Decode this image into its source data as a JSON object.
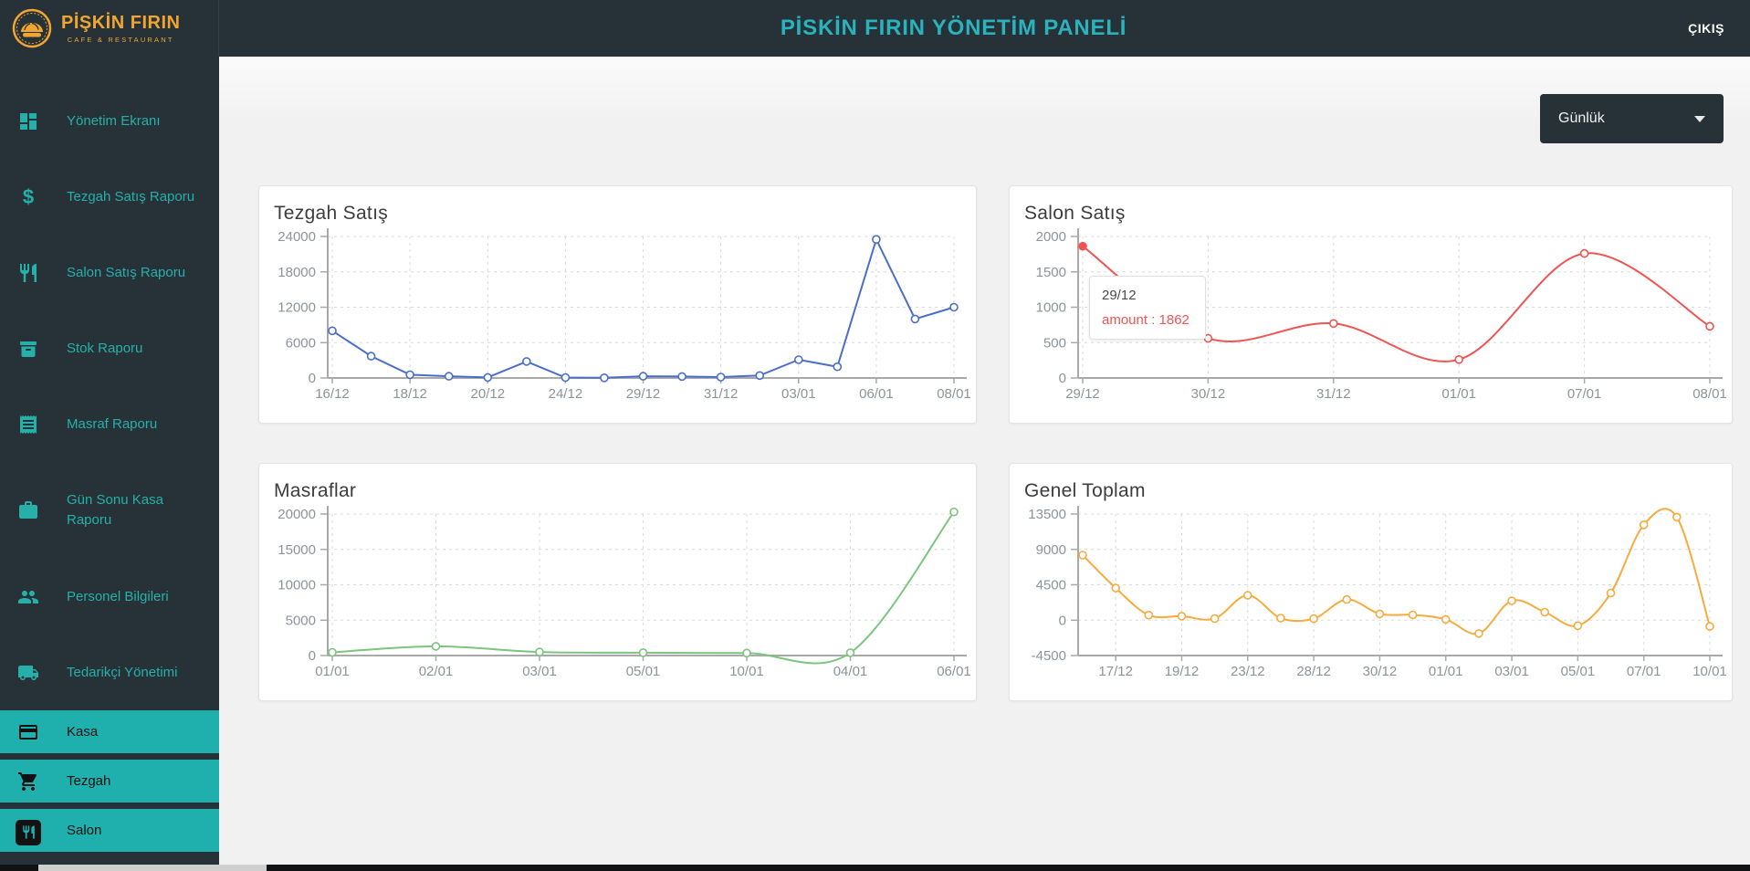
{
  "brand": {
    "name": "PİŞKİN FIRIN",
    "subtitle": "CAFE & RESTAURANT"
  },
  "header": {
    "title": "PİSKİN FIRIN YÖNETİM PANELİ",
    "logout_label": "ÇIKIŞ"
  },
  "sidebar": {
    "items": [
      {
        "label": "Yönetim Ekranı",
        "icon": "dashboard-icon"
      },
      {
        "label": "Tezgah Satış Raporu",
        "icon": "dollar-icon"
      },
      {
        "label": "Salon Satış Raporu",
        "icon": "cutlery-icon"
      },
      {
        "label": "Stok Raporu",
        "icon": "archive-box-icon"
      },
      {
        "label": "Masraf Raporu",
        "icon": "receipt-icon"
      },
      {
        "label": "Gün Sonu Kasa Raporu",
        "icon": "briefcase-icon"
      },
      {
        "label": "Personel Bilgileri",
        "icon": "people-icon"
      },
      {
        "label": "Tedarikçi Yönetimi",
        "icon": "truck-icon"
      }
    ],
    "active_items": [
      {
        "label": "Kasa",
        "icon": "credit-card-icon"
      },
      {
        "label": "Tezgah",
        "icon": "cart-icon"
      },
      {
        "label": "Salon",
        "icon": "restaurant-icon"
      }
    ]
  },
  "filter": {
    "selected": "Günlük"
  },
  "colors": {
    "header_bg": "#263238",
    "accent_teal": "#26b0a9",
    "active_item_bg": "#1fb0ad",
    "title_teal": "#2bb3bd",
    "logo_orange": "#f0a630",
    "series_blue": "#4a6ec8",
    "series_red": "#f05452",
    "series_green": "#7dc57f",
    "series_orange": "#f6ab3e"
  },
  "chart_data": [
    {
      "type": "line",
      "title": "Tezgah Satış",
      "color": "#4a6ec8",
      "smooth": false,
      "ylim": [
        0,
        24000
      ],
      "yticks": [
        0,
        6000,
        12000,
        18000,
        24000
      ],
      "xlabel": "",
      "ylabel": "",
      "legend": "none",
      "grid": true,
      "categories": [
        "16/12",
        "",
        "18/12",
        "",
        "20/12",
        "",
        "24/12",
        "",
        "29/12",
        "",
        "31/12",
        "",
        "03/01",
        "",
        "06/01",
        "",
        "08/01"
      ],
      "values": [
        8000,
        3700,
        550,
        300,
        100,
        2800,
        80,
        30,
        300,
        250,
        160,
        420,
        3100,
        1900,
        23500,
        10000,
        12000
      ]
    },
    {
      "type": "line",
      "title": "Salon Satış",
      "color": "#f05452",
      "smooth": true,
      "ylim": [
        0,
        2000
      ],
      "yticks": [
        0,
        500,
        1000,
        1500,
        2000
      ],
      "xlabel": "",
      "ylabel": "",
      "legend": "none",
      "grid": true,
      "categories": [
        "29/12",
        "30/12",
        "31/12",
        "01/01",
        "07/01",
        "08/01"
      ],
      "values": [
        1862,
        560,
        770,
        260,
        1760,
        730
      ],
      "highlight_point": 0,
      "tooltip": {
        "date": "29/12",
        "text": "amount : 1862"
      }
    },
    {
      "type": "line",
      "title": "Masraflar",
      "color": "#7dc57f",
      "smooth": true,
      "ylim": [
        0,
        20000
      ],
      "yticks": [
        0,
        5000,
        10000,
        15000,
        20000
      ],
      "xlabel": "",
      "ylabel": "",
      "legend": "none",
      "grid": true,
      "categories": [
        "01/01",
        "02/01",
        "03/01",
        "05/01",
        "10/01",
        "04/01",
        "06/01"
      ],
      "values": [
        450,
        1300,
        500,
        400,
        350,
        400,
        20300
      ]
    },
    {
      "type": "line",
      "title": "Genel Toplam",
      "color": "#f6ab3e",
      "smooth": true,
      "ylim": [
        -4500,
        13500
      ],
      "yticks": [
        -4500,
        0,
        4500,
        9000,
        13500
      ],
      "xlabel": "",
      "ylabel": "",
      "legend": "none",
      "grid": true,
      "categories": [
        "",
        "17/12",
        "",
        "19/12",
        "",
        "23/12",
        "",
        "28/12",
        "",
        "30/12",
        "",
        "01/01",
        "",
        "03/01",
        "",
        "05/01",
        "",
        "07/01",
        "",
        "10/01"
      ],
      "values": [
        8270,
        4080,
        650,
        500,
        200,
        3160,
        265,
        190,
        2630,
        800,
        665,
        100,
        -1700,
        2465,
        1020,
        -700,
        3445,
        12130,
        13100,
        -800
      ]
    }
  ]
}
